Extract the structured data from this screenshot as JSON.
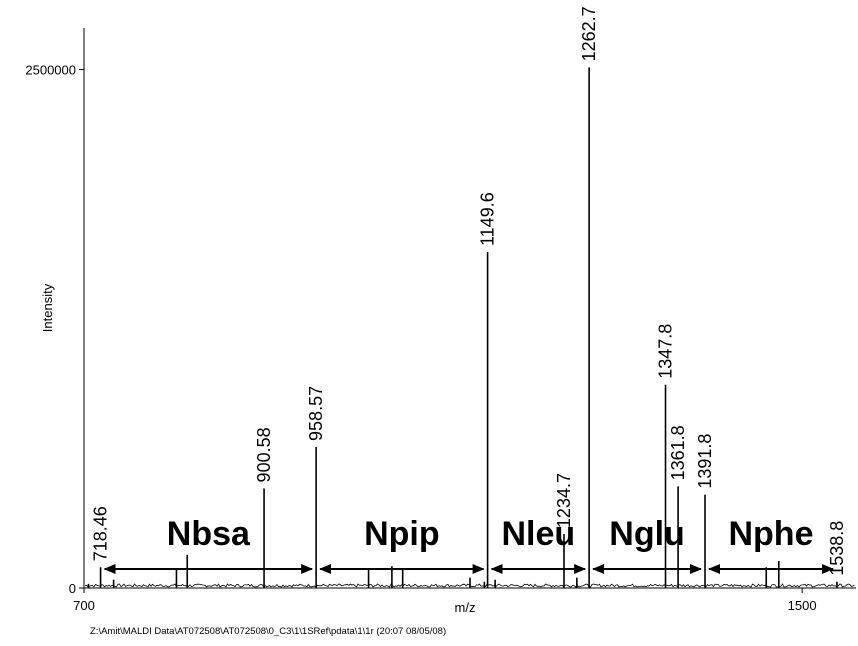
{
  "chart_data": {
    "type": "line",
    "title": "",
    "xlabel": "m/z",
    "ylabel": "Intensity",
    "xlim": [
      700,
      1560
    ],
    "ylim": [
      0,
      2700000
    ],
    "x_ticks": [
      700,
      1500
    ],
    "y_ticks": [
      0,
      2500000
    ],
    "x_tick_labels": [
      "700",
      "1500"
    ],
    "y_tick_labels": [
      "0",
      "2500000"
    ],
    "grid": false,
    "legend": "none",
    "line_color": "#000000",
    "peaks": [
      {
        "x": 705,
        "y": 20000
      },
      {
        "x": 718.46,
        "y": 100000,
        "label": "718.46"
      },
      {
        "x": 733,
        "y": 40000
      },
      {
        "x": 803,
        "y": 95000
      },
      {
        "x": 815,
        "y": 160000
      },
      {
        "x": 900.58,
        "y": 480000,
        "label": "900.58"
      },
      {
        "x": 958.57,
        "y": 680000,
        "label": "958.57"
      },
      {
        "x": 1017,
        "y": 95000
      },
      {
        "x": 1043,
        "y": 105000
      },
      {
        "x": 1055,
        "y": 90000
      },
      {
        "x": 1130,
        "y": 50000
      },
      {
        "x": 1146,
        "y": 30000
      },
      {
        "x": 1149.6,
        "y": 1620000,
        "label": "1149.6"
      },
      {
        "x": 1158,
        "y": 40000
      },
      {
        "x": 1234.7,
        "y": 260000,
        "label": "1234.7"
      },
      {
        "x": 1249,
        "y": 50000
      },
      {
        "x": 1262.7,
        "y": 2510000,
        "label": "1262.7"
      },
      {
        "x": 1347.8,
        "y": 980000,
        "label": "1347.8"
      },
      {
        "x": 1361.8,
        "y": 490000,
        "label": "1361.8"
      },
      {
        "x": 1391.8,
        "y": 450000,
        "label": "1391.8"
      },
      {
        "x": 1460,
        "y": 100000
      },
      {
        "x": 1474,
        "y": 130000
      },
      {
        "x": 1538.8,
        "y": 30000,
        "label": "1538.8"
      }
    ],
    "annotations": [
      {
        "text": "Nbsa",
        "from": 718.46,
        "to": 958.57
      },
      {
        "text": "Npip",
        "from": 958.57,
        "to": 1149.6
      },
      {
        "text": "Nleu",
        "from": 1149.6,
        "to": 1262.7
      },
      {
        "text": "Nglu",
        "from": 1262.7,
        "to": 1391.8
      },
      {
        "text": "Nphe",
        "from": 1391.8,
        "to": 1538.8
      }
    ]
  },
  "footer": {
    "path_text": "Z:\\Amit\\MALDI Data\\AT072508\\AT072508\\0_C3\\1\\1SRef\\pdata\\1\\1r  (20:07 08/05/08)"
  }
}
